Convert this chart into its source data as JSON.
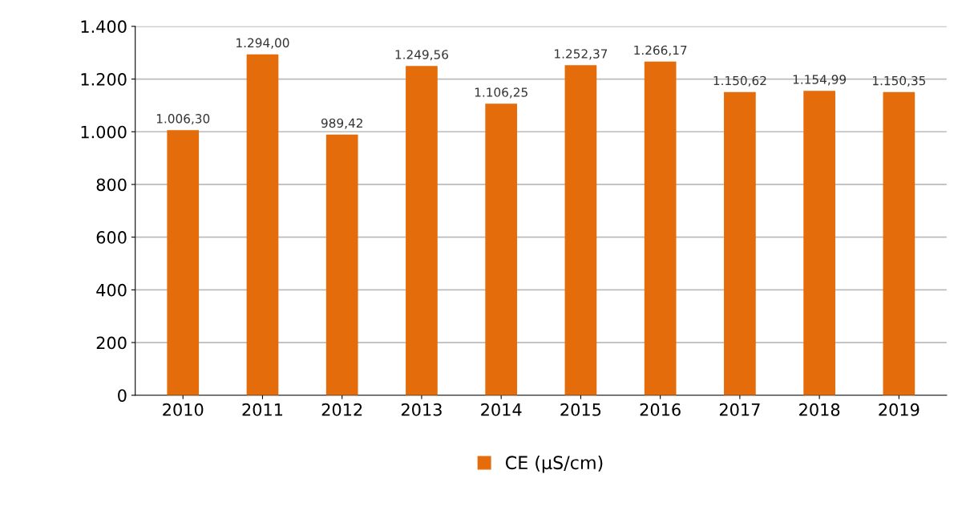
{
  "chart_data": {
    "type": "bar",
    "categories": [
      "2010",
      "2011",
      "2012",
      "2013",
      "2014",
      "2015",
      "2016",
      "2017",
      "2018",
      "2019"
    ],
    "series": [
      {
        "name": "CE (µS/cm)",
        "color": "#e46c0a",
        "values": [
          1006.3,
          1294.0,
          989.42,
          1249.56,
          1106.25,
          1252.37,
          1266.17,
          1150.62,
          1154.99,
          1150.35
        ],
        "value_labels": [
          "1.006,30",
          "1.294,00",
          "989,42",
          "1.249,56",
          "1.106,25",
          "1.252,37",
          "1.266,17",
          "1.150,62",
          "1.154,99",
          "1.150,35"
        ]
      }
    ],
    "ylim": [
      0,
      1400
    ],
    "yticks": [
      0,
      200,
      400,
      600,
      800,
      {
        "value": 1000,
        "label": "1.000"
      },
      {
        "value": 1200,
        "label": "1.200"
      },
      {
        "value": 1400,
        "label": "1.400"
      }
    ],
    "grid": "y",
    "legend": "bottom"
  }
}
